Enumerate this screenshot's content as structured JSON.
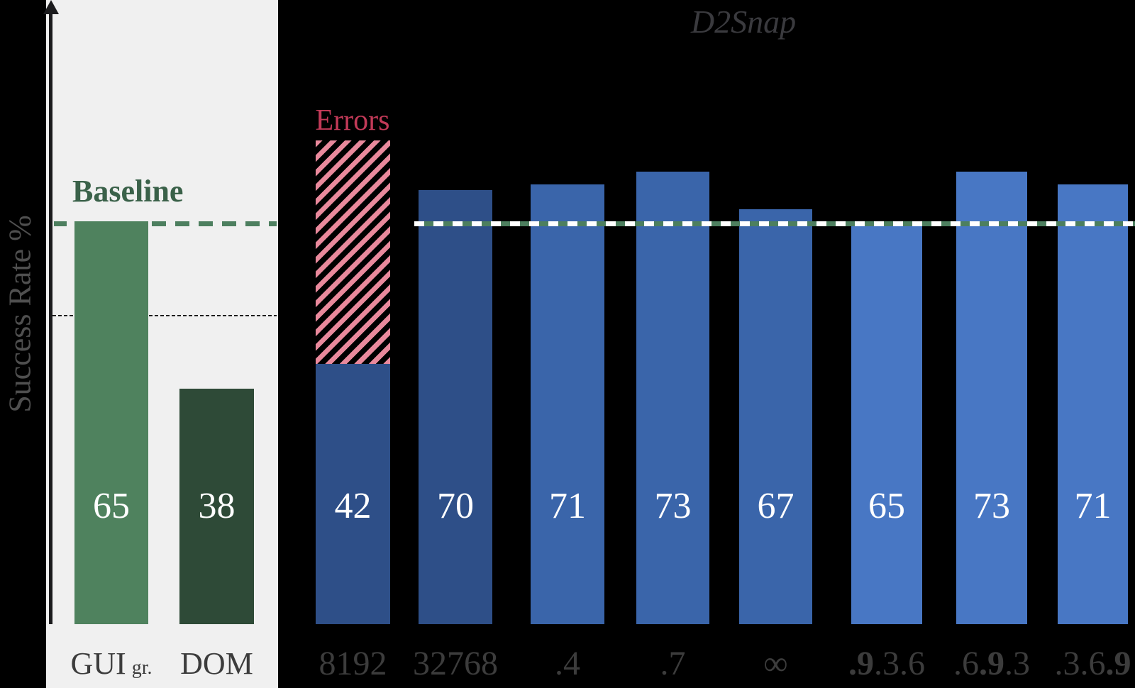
{
  "chart_data": {
    "type": "bar",
    "title": "D2Snap",
    "ylabel": "Success Rate %",
    "baseline_label": "Baseline",
    "errors_label": "Errors",
    "baseline_value": 65,
    "gridline_value": 50,
    "ylim": [
      0,
      100
    ],
    "categories": [
      "GUI gr.",
      "DOM",
      "8192",
      "32768",
      ".4",
      ".7",
      "∞",
      ".9.3.6",
      ".6.9.3",
      ".3.6.9"
    ],
    "values": [
      65,
      38,
      42,
      70,
      71,
      73,
      67,
      65,
      73,
      71
    ],
    "sections": {
      "baseline": [
        "GUI gr.",
        "DOM"
      ],
      "d2snap": [
        "8192",
        "32768",
        ".4",
        ".7",
        "∞",
        ".9.3.6",
        ".6.9.3",
        ".3.6.9"
      ]
    },
    "bars": [
      {
        "id": "gui",
        "value": 65,
        "color": "#4F825E",
        "section": "baseline",
        "label_parts": [
          {
            "text": "GUI"
          },
          {
            "text": "gr.",
            "small": true
          }
        ]
      },
      {
        "id": "dom",
        "value": 38,
        "color": "#2E4A37",
        "section": "baseline",
        "label_parts": [
          {
            "text": "DOM"
          }
        ]
      },
      {
        "id": "8192",
        "value": 42,
        "color": "#2E4F88",
        "section": "d2snap",
        "errors_top_value": 78,
        "label_parts": [
          {
            "text": "8192"
          }
        ]
      },
      {
        "id": "32768",
        "value": 70,
        "color": "#2E4F88",
        "section": "d2snap",
        "label_parts": [
          {
            "text": "32768"
          }
        ]
      },
      {
        "id": "0.4",
        "value": 71,
        "color": "#3A65AA",
        "section": "d2snap",
        "label_parts": [
          {
            "text": ".4"
          }
        ]
      },
      {
        "id": "0.7",
        "value": 73,
        "color": "#3A65AA",
        "section": "d2snap",
        "label_parts": [
          {
            "text": ".7"
          }
        ]
      },
      {
        "id": "inf",
        "value": 67,
        "color": "#3A65AA",
        "section": "d2snap",
        "label_parts": [
          {
            "text": "∞"
          }
        ]
      },
      {
        "id": "w-9-3-6",
        "value": 65,
        "color": "#4877C4",
        "section": "d2snap",
        "label_parts": [
          {
            "text": ".9",
            "bold": true
          },
          {
            "text": ".3"
          },
          {
            "text": ".6"
          }
        ]
      },
      {
        "id": "w-6-9-3",
        "value": 73,
        "color": "#4877C4",
        "section": "d2snap",
        "label_parts": [
          {
            "text": ".6"
          },
          {
            "text": ".9",
            "bold": true
          },
          {
            "text": ".3"
          }
        ]
      },
      {
        "id": "w-3-6-9",
        "value": 71,
        "color": "#4877C4",
        "section": "d2snap",
        "label_parts": [
          {
            "text": ".3"
          },
          {
            "text": ".6"
          },
          {
            "text": ".9",
            "bold": true
          }
        ]
      }
    ],
    "colors": {
      "background": "#000000",
      "panel_bg": "#F0F0F0",
      "axis": "#1B1B1D",
      "baseline_green_dash": "#4D7F5F",
      "reference_line_white": "#FFFFFF",
      "error_hatch_pink": "#E9899C",
      "errors_text": "#C23A58",
      "baseline_text": "#3A6149",
      "title_text": "#3A3A3E",
      "tick_text": "#3C3C3C",
      "ylabel_text": "#4F4F4F",
      "bar_value_text": "#FFFFFF",
      "gridline": "#1C1C1C"
    },
    "legend_position": "none",
    "grid": "single dashed line at 50"
  }
}
